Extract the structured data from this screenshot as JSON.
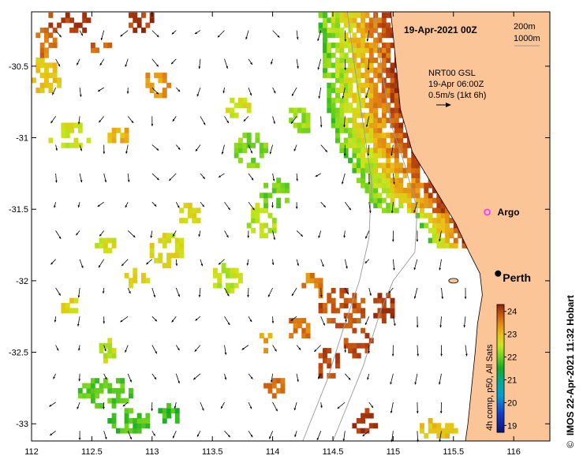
{
  "map": {
    "title": "19-Apr-2021 00Z",
    "depth_legend": [
      "200m",
      "1000m"
    ],
    "current_legend": [
      "NRT00 GSL",
      "19-Apr 06:00Z",
      "0.5m/s (1kt 6h)"
    ],
    "xlim": [
      112,
      116.3
    ],
    "ylim": [
      -33.12,
      -30.12
    ],
    "x_ticks": [
      "112",
      "112.5",
      "113",
      "113.5",
      "114",
      "114.5",
      "115",
      "115.5",
      "116"
    ],
    "y_ticks": [
      "-30.5",
      "-31",
      "-31.5",
      "-32",
      "-32.5",
      "-33"
    ],
    "markers": [
      {
        "label": "Argo",
        "lon": 115.78,
        "lat": -31.52,
        "kind": "argo",
        "color": "#ff33ff"
      },
      {
        "label": "Perth",
        "lon": 115.87,
        "lat": -31.95,
        "kind": "city",
        "color": "#000000"
      }
    ],
    "colorbar": {
      "label": "4h comp, p50, All Sats",
      "min": 18.7,
      "max": 24.3,
      "ticks": [
        "19",
        "20",
        "21",
        "22",
        "23",
        "24"
      ]
    },
    "credit_symbol": "©",
    "credit": "IMOS 22-Apr-2021 11:32 Hobart",
    "colors": {
      "land": "#fbc597",
      "ocean": "#ffffff",
      "bathymetry": "#999999"
    }
  }
}
